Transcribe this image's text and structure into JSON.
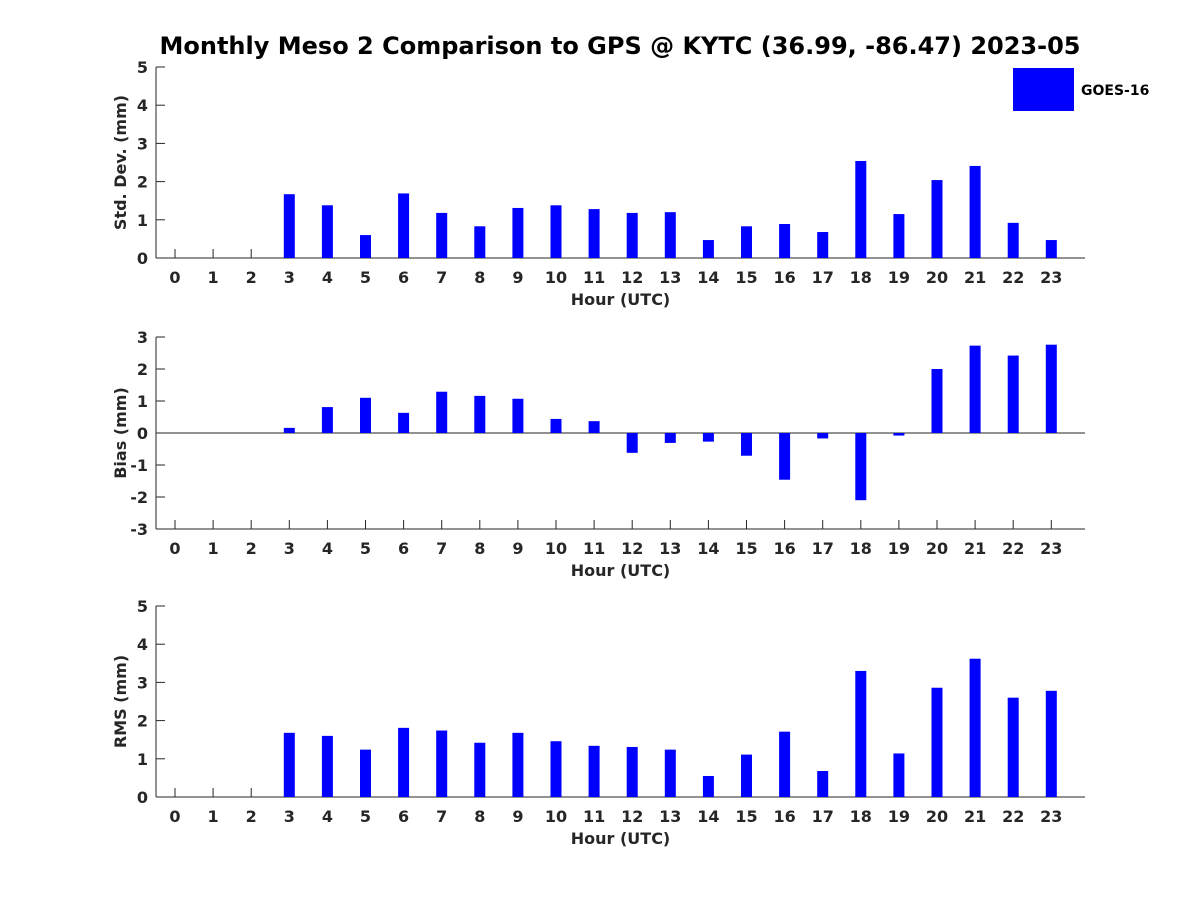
{
  "chart_data": {
    "type": "bar",
    "title": "Monthly Meso 2 Comparison to GPS @ KYTC (36.99, -86.47) 2023-05",
    "legend": {
      "entries": [
        "GOES-16"
      ],
      "placement": "top-right"
    },
    "bar_color": "#0000ff",
    "categories": [
      "0",
      "1",
      "2",
      "3",
      "4",
      "5",
      "6",
      "7",
      "8",
      "9",
      "10",
      "11",
      "12",
      "13",
      "14",
      "15",
      "16",
      "17",
      "18",
      "19",
      "20",
      "21",
      "22",
      "23"
    ],
    "panels": [
      {
        "ylabel": "Std. Dev. (mm)",
        "xlabel": "Hour (UTC)",
        "ylim": [
          0,
          5
        ],
        "yticks": [
          "0",
          "1",
          "2",
          "3",
          "4",
          "5"
        ],
        "series": [
          {
            "name": "GOES-16",
            "values": [
              null,
              null,
              null,
              1.67,
              1.38,
              0.6,
              1.69,
              1.18,
              0.83,
              1.31,
              1.38,
              1.28,
              1.18,
              1.2,
              0.47,
              0.83,
              0.89,
              0.68,
              2.54,
              1.15,
              2.04,
              2.41,
              0.92,
              0.47
            ]
          }
        ]
      },
      {
        "ylabel": "Bias (mm)",
        "xlabel": "Hour (UTC)",
        "ylim": [
          -3,
          3
        ],
        "yticks": [
          "-3",
          "-2",
          "-1",
          "0",
          "1",
          "2",
          "3"
        ],
        "series": [
          {
            "name": "GOES-16",
            "values": [
              null,
              null,
              null,
              0.16,
              0.81,
              1.1,
              0.63,
              1.29,
              1.16,
              1.07,
              0.44,
              0.37,
              -0.62,
              -0.31,
              -0.27,
              -0.71,
              -1.46,
              -0.17,
              -2.1,
              -0.08,
              2.0,
              2.73,
              2.42,
              2.76
            ]
          }
        ]
      },
      {
        "ylabel": "RMS (mm)",
        "xlabel": "Hour (UTC)",
        "ylim": [
          0,
          5
        ],
        "yticks": [
          "0",
          "1",
          "2",
          "3",
          "4",
          "5"
        ],
        "series": [
          {
            "name": "GOES-16",
            "values": [
              null,
              null,
              null,
              1.68,
              1.6,
              1.24,
              1.81,
              1.74,
              1.42,
              1.68,
              1.46,
              1.34,
              1.31,
              1.24,
              0.55,
              1.11,
              1.71,
              0.68,
              3.3,
              1.14,
              2.86,
              3.62,
              2.6,
              2.78
            ]
          }
        ]
      }
    ]
  }
}
